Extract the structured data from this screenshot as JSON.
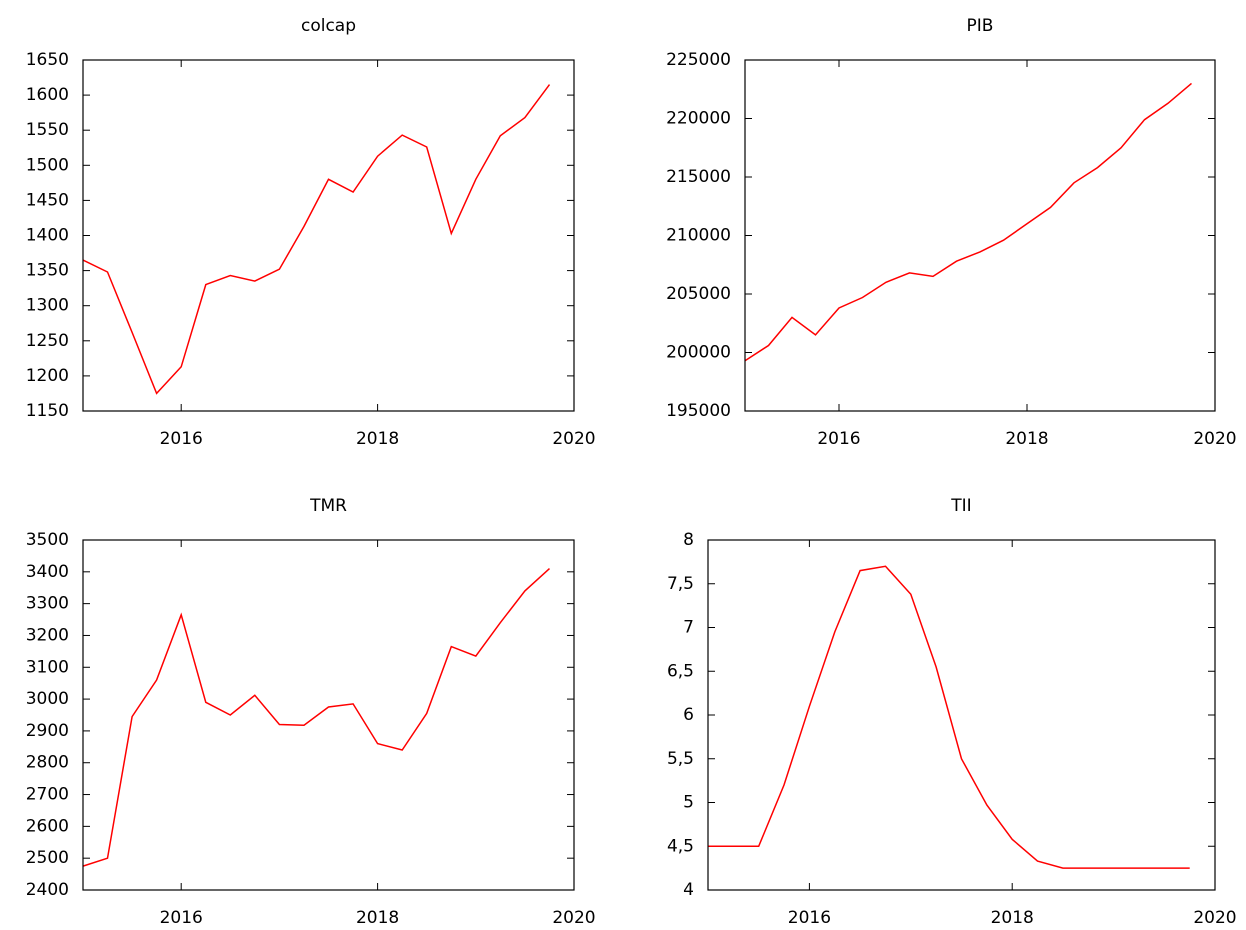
{
  "chart_data": [
    {
      "type": "line",
      "title": "colcap",
      "x": [
        2015,
        2015.25,
        2015.5,
        2015.75,
        2016,
        2016.25,
        2016.5,
        2016.75,
        2017,
        2017.25,
        2017.5,
        2017.75,
        2018,
        2018.25,
        2018.5,
        2018.75,
        2019,
        2019.25,
        2019.5,
        2019.75
      ],
      "values": [
        1365,
        1348,
        1262,
        1175,
        1213,
        1330,
        1343,
        1335,
        1352,
        1413,
        1480,
        1462,
        1513,
        1543,
        1526,
        1403,
        1480,
        1542,
        1568,
        1615
      ],
      "color": "#ff0000",
      "xlim": [
        2015,
        2020
      ],
      "xticks": [
        2016,
        2018,
        2020
      ],
      "ylim": [
        1150,
        1650
      ],
      "yticks": [
        1150,
        1200,
        1250,
        1300,
        1350,
        1400,
        1450,
        1500,
        1550,
        1600,
        1650
      ]
    },
    {
      "type": "line",
      "title": "PIB",
      "x": [
        2015,
        2015.25,
        2015.5,
        2015.75,
        2016,
        2016.25,
        2016.5,
        2016.75,
        2017,
        2017.25,
        2017.5,
        2017.75,
        2018,
        2018.25,
        2018.5,
        2018.75,
        2019,
        2019.25,
        2019.5,
        2019.75
      ],
      "values": [
        199300,
        200600,
        203000,
        201500,
        203800,
        204700,
        206000,
        206800,
        206500,
        207800,
        208600,
        209600,
        211000,
        212400,
        214500,
        215800,
        217500,
        219900,
        221300,
        223000
      ],
      "color": "#ff0000",
      "xlim": [
        2015,
        2020
      ],
      "xticks": [
        2016,
        2018,
        2020
      ],
      "ylim": [
        195000,
        225000
      ],
      "yticks": [
        195000,
        200000,
        205000,
        210000,
        215000,
        220000,
        225000
      ]
    },
    {
      "type": "line",
      "title": "TMR",
      "x": [
        2015,
        2015.25,
        2015.5,
        2015.75,
        2016,
        2016.25,
        2016.5,
        2016.75,
        2017,
        2017.25,
        2017.5,
        2017.75,
        2018,
        2018.25,
        2018.5,
        2018.75,
        2019,
        2019.25,
        2019.5,
        2019.75
      ],
      "values": [
        2475,
        2500,
        2945,
        3060,
        3265,
        2990,
        2950,
        3012,
        2920,
        2918,
        2975,
        2985,
        2860,
        2840,
        2955,
        3165,
        3135,
        3240,
        3340,
        3410
      ],
      "color": "#ff0000",
      "xlim": [
        2015,
        2020
      ],
      "xticks": [
        2016,
        2018,
        2020
      ],
      "ylim": [
        2400,
        3500
      ],
      "yticks": [
        2400,
        2500,
        2600,
        2700,
        2800,
        2900,
        3000,
        3100,
        3200,
        3300,
        3400,
        3500
      ]
    },
    {
      "type": "line",
      "title": "TII",
      "x": [
        2015,
        2015.25,
        2015.5,
        2015.75,
        2016,
        2016.25,
        2016.5,
        2016.75,
        2017,
        2017.25,
        2017.5,
        2017.75,
        2018,
        2018.25,
        2018.5,
        2018.75,
        2019,
        2019.25,
        2019.5,
        2019.75
      ],
      "values": [
        4.5,
        4.5,
        4.5,
        5.2,
        6.1,
        6.95,
        7.65,
        7.7,
        7.38,
        6.55,
        5.5,
        4.97,
        4.58,
        4.33,
        4.25,
        4.25,
        4.25,
        4.25,
        4.25,
        4.25
      ],
      "color": "#ff0000",
      "xlim": [
        2015,
        2020
      ],
      "xticks": [
        2016,
        2018,
        2020
      ],
      "ylim": [
        4,
        8
      ],
      "yticks": [
        4,
        {
          "value": 4.5,
          "label": "4,5"
        },
        5,
        {
          "value": 5.5,
          "label": "5,5"
        },
        6,
        {
          "value": 6.5,
          "label": "6,5"
        },
        7,
        {
          "value": 7.5,
          "label": "7,5"
        },
        8
      ]
    }
  ]
}
